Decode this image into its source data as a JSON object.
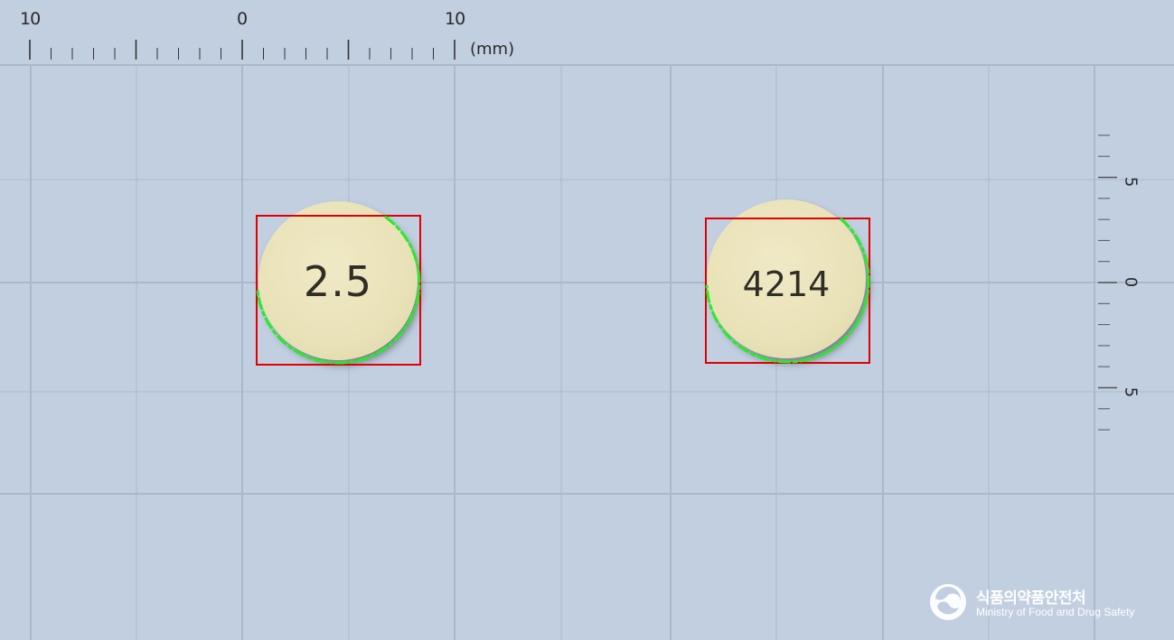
{
  "ruler": {
    "horizontal_labels": [
      "10",
      "0",
      "10"
    ],
    "unit": "(mm)",
    "vertical_labels": [
      "5",
      "0",
      "5"
    ]
  },
  "pills": [
    {
      "imprint": "2.5"
    },
    {
      "imprint": "4214"
    }
  ],
  "logo": {
    "korean": "식품의약품안전처",
    "english": "Ministry of Food and Drug Safety"
  },
  "colors": {
    "background": "#c1cfe1",
    "grid": "#a9b8ca",
    "pill": "#e9e2b8",
    "bounding_box": "#e00000",
    "contour": "#22ee22"
  }
}
